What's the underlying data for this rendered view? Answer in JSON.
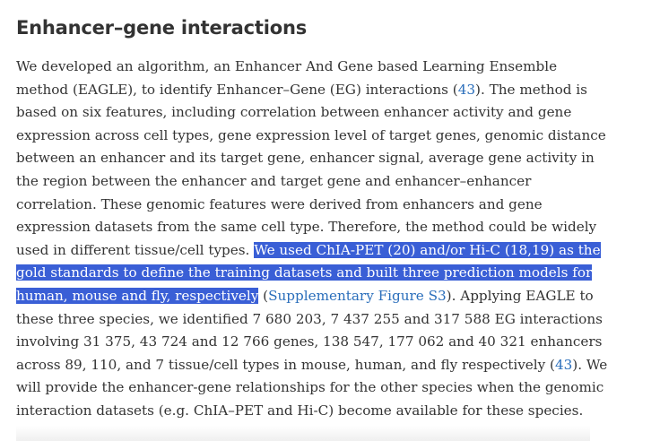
{
  "heading": "Enhancer–gene interactions",
  "lines": {
    "l1": "We developed an algorithm, an Enhancer And Gene based Learning Ensemble",
    "l2a": "method (EAGLE), to identify Enhancer–Gene (EG) interactions (",
    "l2ref": "43",
    "l2b": "). The method is",
    "l3": "based on six features, including correlation between enhancer activity and gene",
    "l4": "expression across cell types, gene expression level of target genes, genomic distance",
    "l5": "between an enhancer and its target gene, enhancer signal, average gene activity in",
    "l6": "the region between the enhancer and target gene and enhancer–enhancer",
    "l7": "correlation. These genomic features were derived from enhancers and gene",
    "l8": "expression datasets from the same cell type. Therefore, the method could be widely",
    "l9a": "used in different tissue/cell types. ",
    "l9hl": "We used ChIA-PET (20) and/or Hi-C (18,19) as the",
    "l10hl": "gold standards to define the training datasets and built three prediction models for",
    "l11hl": "human, mouse and fly, respectively",
    "l11a": " (",
    "l11ref": "Supplementary Figure S3",
    "l11b": "). Applying EAGLE to",
    "l12": "these three species, we identified 7 680 203, 7 437 255 and 317 588 EG interactions",
    "l13": "involving 31 375, 43 724 and 12 766 genes, 138 547, 177 062 and 40 321 enhancers",
    "l14a": "across 89, 110, and 7 tissue/cell types in mouse, human, and fly respectively (",
    "l14ref": "43",
    "l14b": "). We",
    "l15": "will provide the enhancer-gene relationships for the other species when the genomic",
    "l16": "interaction datasets (e.g. ChIA–PET and Hi-C) become available for these species."
  },
  "colors": {
    "text": "#333333",
    "link": "#2a6ebb",
    "selection": "#3a5fd6"
  }
}
